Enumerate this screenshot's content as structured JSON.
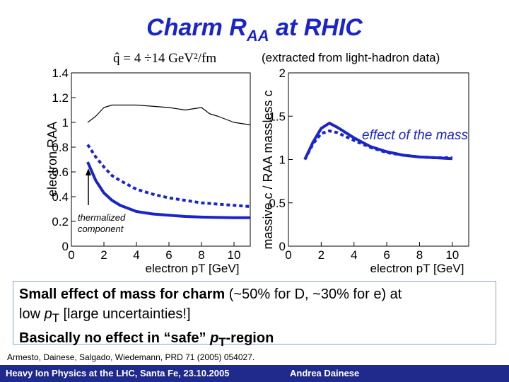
{
  "title": {
    "main": "Charm R",
    "sub": "AA",
    "tail": " at RHIC"
  },
  "qhat_label": "q̂ = 4 ÷14 GeV²/fm",
  "extracted_note": "(extracted from light-hadron data)",
  "annotations": {
    "thermalized": "thermalized",
    "component": "component",
    "mass_effect": "effect of the mass"
  },
  "summary": {
    "line1_bold": "Small effect of mass for charm",
    "line1_rest": " (~50% for D, ~30% for e) at",
    "line2_a": "low ",
    "line2_p": "p",
    "line2_T": "T",
    "line2_rest": " [large uncertainties!]",
    "line3_a": "Basically no effect in “safe” ",
    "line3_p": "p",
    "line3_T": "T",
    "line3_rest": "-region"
  },
  "reference": "Armesto, Dainese, Salgado, Wiedemann, PRD 71 (2005) 054027.",
  "footer": {
    "left": "Heavy Ion Physics at the LHC, Santa Fe, 23.10.2005",
    "right": "Andrea Dainese"
  },
  "colors": {
    "accent": "#1a24c8",
    "footer_bg": "#1f2a8c"
  },
  "chart_data": [
    {
      "type": "line",
      "title": "",
      "xlabel": "electron pT [GeV]",
      "ylabel": "electron RAA",
      "xlim": [
        0,
        11
      ],
      "ylim": [
        0,
        1.4
      ],
      "xticks": [
        "0",
        "2",
        "4",
        "6",
        "8",
        "10"
      ],
      "yticks": [
        "0",
        "0.2",
        "0.4",
        "0.6",
        "0.8",
        "1",
        "1.2",
        "1.4"
      ],
      "series": [
        {
          "name": "light hadrons (thin)",
          "style": "thin",
          "x": [
            1,
            1.5,
            2,
            2.5,
            3,
            4,
            5,
            6,
            7,
            8,
            8.5,
            9,
            10,
            11
          ],
          "y": [
            1.0,
            1.05,
            1.12,
            1.14,
            1.14,
            1.14,
            1.13,
            1.12,
            1.1,
            1.12,
            1.07,
            1.05,
            1.0,
            0.98
          ]
        },
        {
          "name": "massive c (solid)",
          "style": "solid",
          "x": [
            1,
            1.5,
            2,
            2.5,
            3,
            4,
            5,
            6,
            7,
            8,
            9,
            10,
            11
          ],
          "y": [
            0.68,
            0.53,
            0.43,
            0.37,
            0.33,
            0.28,
            0.26,
            0.25,
            0.24,
            0.235,
            0.232,
            0.23,
            0.23
          ]
        },
        {
          "name": "massless c (dashed)",
          "style": "dashed",
          "x": [
            1,
            1.5,
            2,
            2.5,
            3,
            4,
            5,
            6,
            7,
            8,
            9,
            10,
            11
          ],
          "y": [
            0.82,
            0.72,
            0.64,
            0.57,
            0.53,
            0.46,
            0.42,
            0.39,
            0.37,
            0.35,
            0.34,
            0.33,
            0.32
          ]
        }
      ]
    },
    {
      "type": "line",
      "title": "",
      "xlabel": "electron pT [GeV]",
      "ylabel": "massive c / RAA massless c",
      "xlim": [
        0,
        11
      ],
      "ylim": [
        0,
        2
      ],
      "xticks": [
        "0",
        "2",
        "4",
        "6",
        "8",
        "10"
      ],
      "yticks": [
        "0",
        "0.5",
        "1",
        "1.5",
        "2"
      ],
      "series": [
        {
          "name": "ratio (solid)",
          "style": "solid",
          "x": [
            1,
            1.5,
            2,
            2.5,
            3,
            4,
            5,
            6,
            7,
            8,
            9,
            10
          ],
          "y": [
            1.0,
            1.2,
            1.36,
            1.42,
            1.37,
            1.25,
            1.15,
            1.09,
            1.05,
            1.03,
            1.02,
            1.01
          ]
        },
        {
          "name": "ratio (dashed)",
          "style": "dashed",
          "x": [
            1,
            1.5,
            2,
            2.5,
            3,
            4,
            5,
            6,
            7,
            8,
            9,
            10
          ],
          "y": [
            1.0,
            1.18,
            1.3,
            1.33,
            1.31,
            1.22,
            1.14,
            1.08,
            1.05,
            1.03,
            1.02,
            1.02
          ]
        }
      ]
    }
  ]
}
